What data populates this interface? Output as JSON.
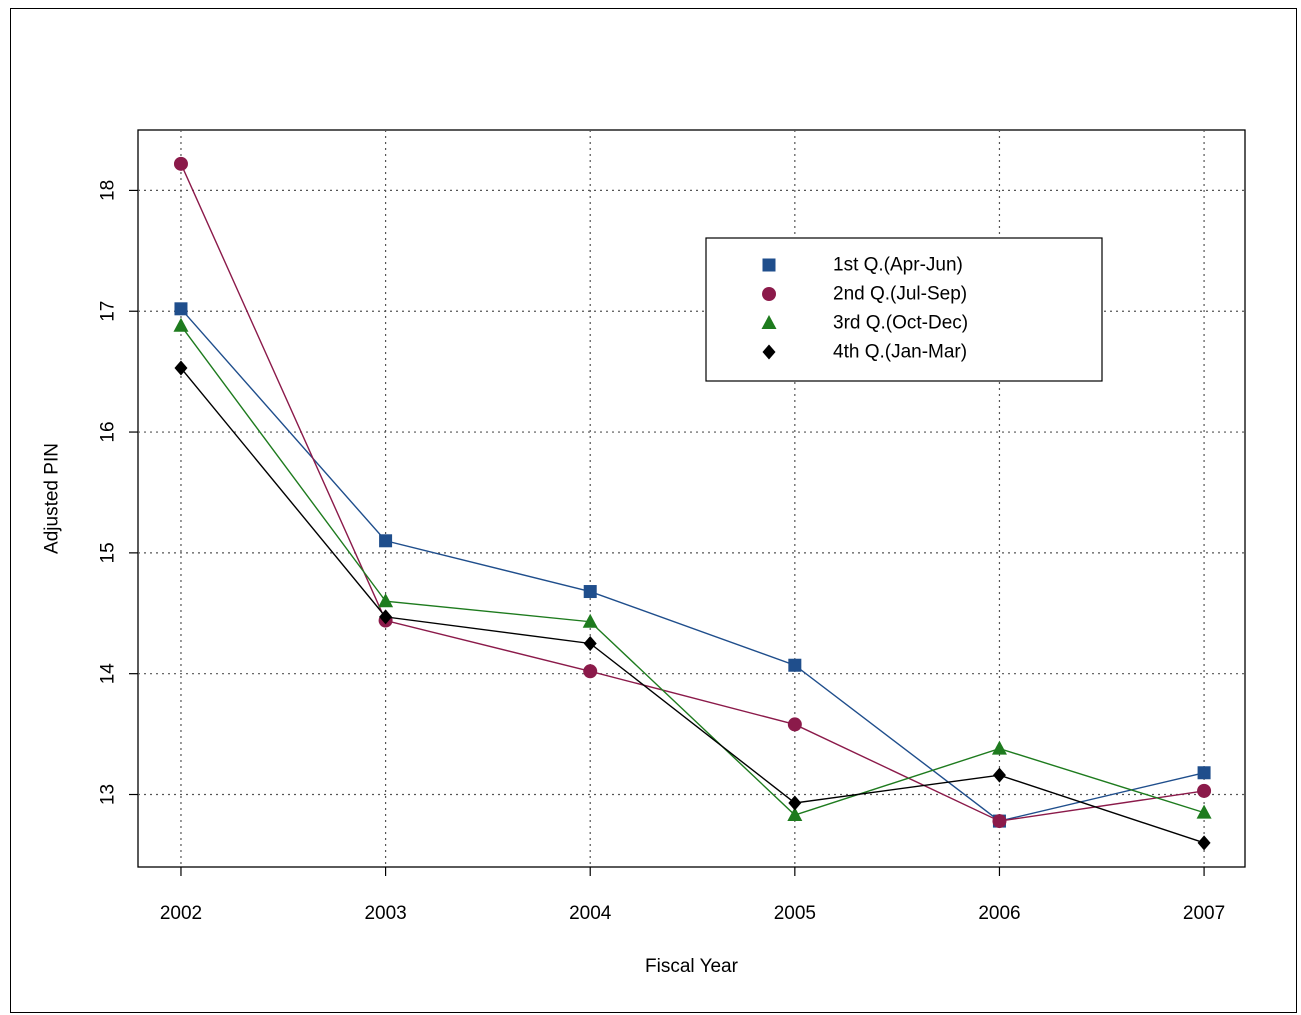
{
  "chart_data": {
    "type": "line",
    "title": "",
    "xlabel": "Fiscal Year",
    "ylabel": "Adjusted PIN",
    "categories": [
      "2002",
      "2003",
      "2004",
      "2005",
      "2006",
      "2007"
    ],
    "x": [
      2002,
      2003,
      2004,
      2005,
      2006,
      2007
    ],
    "xlim": [
      2001.79,
      2007.2
    ],
    "ylim": [
      12.4,
      18.5
    ],
    "yticks": [
      13,
      14,
      15,
      16,
      17,
      18
    ],
    "grid": true,
    "legend_position": "top-right",
    "series": [
      {
        "name": "1st Q.(Apr-Jun)",
        "color": "#1F4E8C",
        "marker": "square",
        "values": [
          17.02,
          15.1,
          14.68,
          14.07,
          12.78,
          13.18
        ]
      },
      {
        "name": "2nd Q.(Jul-Sep)",
        "color": "#8B1A4A",
        "marker": "circle",
        "values": [
          18.22,
          14.44,
          14.02,
          13.58,
          12.78,
          13.03
        ]
      },
      {
        "name": "3rd Q.(Oct-Dec)",
        "color": "#1E7B1E",
        "marker": "triangle",
        "values": [
          16.88,
          14.6,
          14.43,
          12.83,
          13.38,
          12.85
        ]
      },
      {
        "name": "4th Q.(Jan-Mar)",
        "color": "#000000",
        "marker": "diamond",
        "values": [
          16.53,
          14.47,
          14.25,
          12.93,
          13.16,
          12.6
        ]
      }
    ]
  }
}
